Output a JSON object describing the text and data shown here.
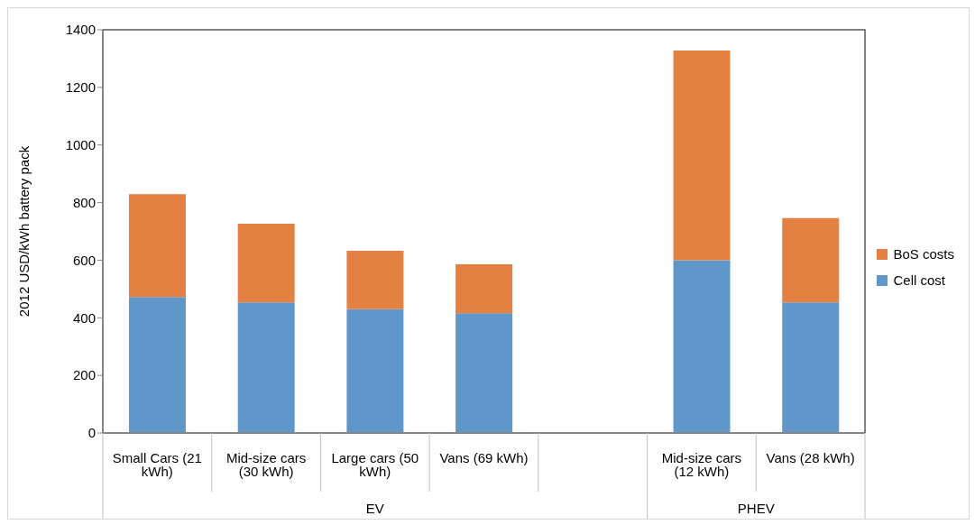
{
  "chart_data": {
    "type": "bar",
    "stacked": true,
    "ylabel": "2012 USD/kWh battery pack",
    "categories": [
      "Small Cars (21 kWh)",
      "Mid-size cars (30 kWh)",
      "Large cars (50 kWh)",
      "Vans (69 kWh)",
      null,
      "Mid-size cars (12 kWh)",
      "Vans (28 kWh)"
    ],
    "series": [
      {
        "name": "Cell cost",
        "color": "#6097ca",
        "values": [
          472,
          453,
          430,
          416,
          null,
          600,
          453
        ]
      },
      {
        "name": "BoS costs",
        "color": "#e48041",
        "values": [
          357,
          274,
          203,
          170,
          null,
          728,
          293
        ]
      }
    ],
    "ylim": [
      0,
      1400
    ],
    "yticks": [
      0,
      200,
      400,
      600,
      800,
      1000,
      1200,
      1400
    ],
    "legend": "right",
    "annotations": [
      "EV",
      "PHEV"
    ]
  }
}
